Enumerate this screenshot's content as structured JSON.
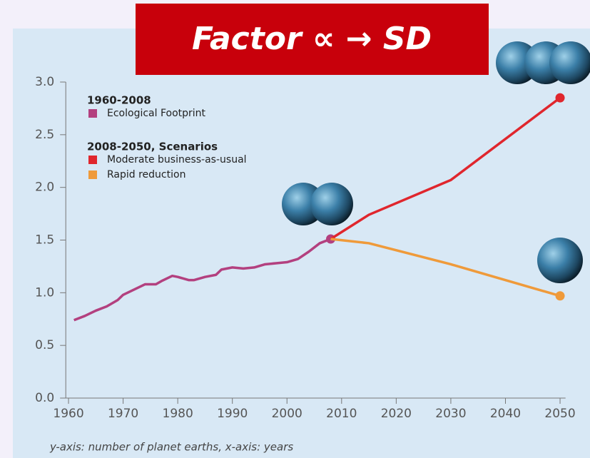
{
  "chart_data": {
    "type": "line",
    "title": "Factor ∝ → SD",
    "footnote": "y-axis: number of planet earths, x-axis: years",
    "legend_titles": [
      "1960-2008",
      "2008-2050, Scenarios"
    ],
    "xlim": [
      1959.5,
      2051
    ],
    "xticks": [
      1960,
      1970,
      1980,
      1990,
      2000,
      2010,
      2020,
      2030,
      2040,
      2050
    ],
    "ylim": [
      0,
      3
    ],
    "yticks": [
      {
        "value": 0,
        "label": "0.0"
      },
      0.5,
      {
        "value": 1,
        "label": "1.0"
      },
      1.5,
      {
        "value": 2,
        "label": "2.0"
      },
      2.5,
      {
        "value": 3,
        "label": "3.0"
      }
    ],
    "series": [
      {
        "name": "Ecological Footprint",
        "color": "#b3407f",
        "x": [
          1961,
          1963,
          1965,
          1967,
          1969,
          1970,
          1972,
          1974,
          1976,
          1977,
          1979,
          1980,
          1982,
          1983,
          1985,
          1987,
          1988,
          1990,
          1992,
          1994,
          1996,
          1998,
          2000,
          2002,
          2004,
          2006,
          2008
        ],
        "values": [
          0.74,
          0.78,
          0.83,
          0.87,
          0.93,
          0.98,
          1.03,
          1.08,
          1.08,
          1.11,
          1.16,
          1.15,
          1.12,
          1.12,
          1.15,
          1.17,
          1.22,
          1.24,
          1.23,
          1.24,
          1.27,
          1.28,
          1.29,
          1.32,
          1.39,
          1.47,
          1.51
        ]
      },
      {
        "name": "Moderate business-as-usual",
        "color": "#e0262d",
        "x": [
          2008,
          2015,
          2030,
          2050
        ],
        "values": [
          1.51,
          1.74,
          2.07,
          2.85
        ]
      },
      {
        "name": "Rapid reduction",
        "color": "#ef9a3a",
        "x": [
          2008,
          2015,
          2030,
          2050
        ],
        "values": [
          1.51,
          1.47,
          1.27,
          0.97
        ]
      }
    ]
  }
}
